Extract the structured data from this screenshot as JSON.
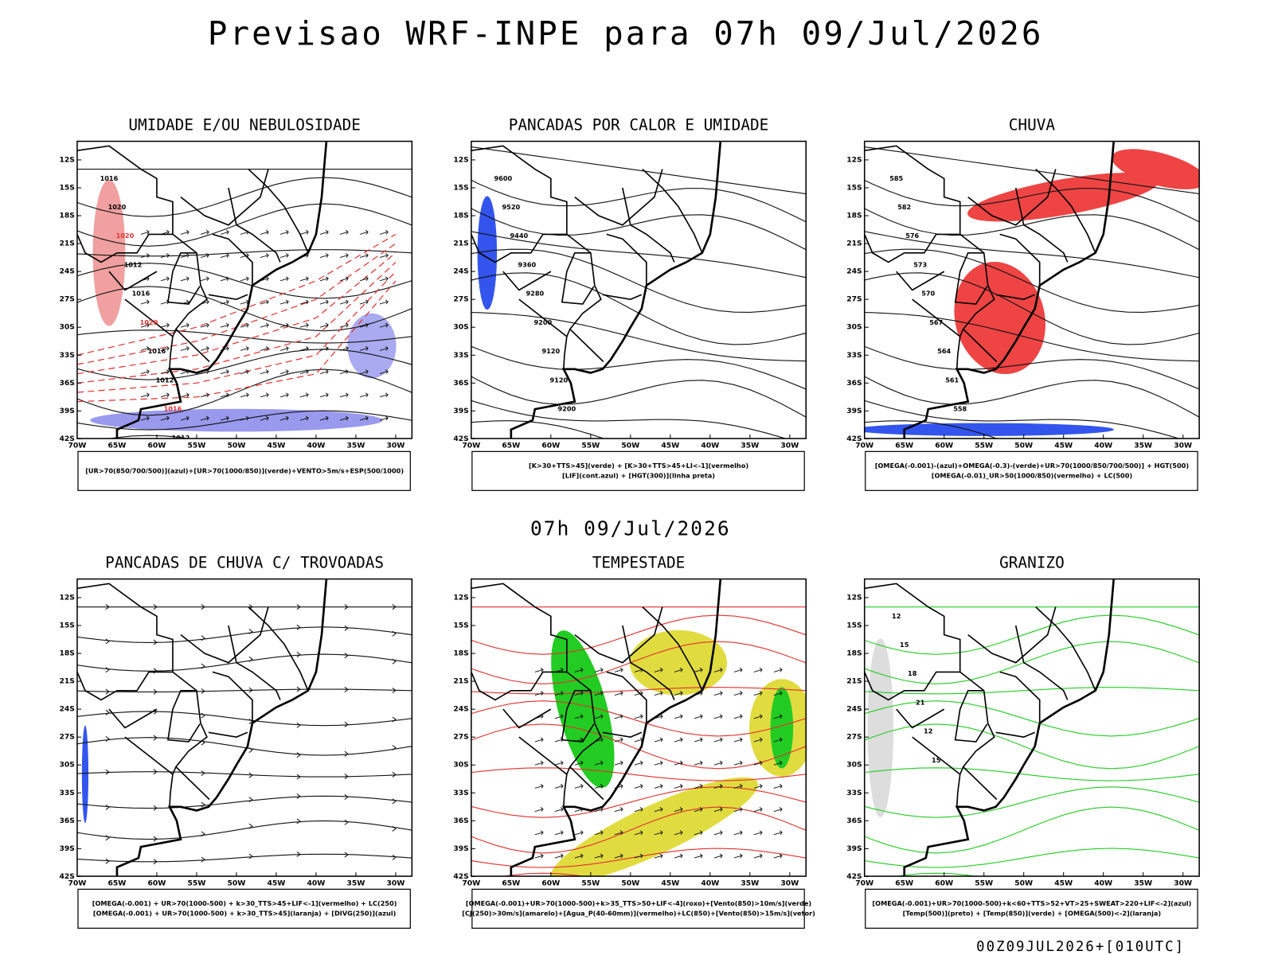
{
  "header": {
    "title": "Previsao WRF-INPE  para 07h 09/Jul/2026",
    "middle_label": "07h 09/Jul/2026",
    "footer": "00Z09JUL2026+[010UTC]"
  },
  "axes": {
    "lat_labels": [
      "12S",
      "15S",
      "18S",
      "21S",
      "24S",
      "27S",
      "30S",
      "33S",
      "36S",
      "39S",
      "42S"
    ],
    "lon_labels": [
      "70W",
      "65W",
      "60W",
      "55W",
      "50W",
      "45W",
      "40W",
      "35W",
      "30W"
    ]
  },
  "panels": [
    {
      "title": "UMIDADE E/OU NEBULOSIDADE",
      "legend": [
        "[UR>70(850/700/500)](azul)+[UR>70(1000/850)](verde)+VENTO>5m/s+ESP(500/1000)"
      ],
      "contour_labels": [
        "1016",
        "1020",
        "1020",
        "1012",
        "1016",
        "1020",
        "1016",
        "1012",
        "1016",
        "1012"
      ]
    },
    {
      "title": "PANCADAS POR CALOR E UMIDADE",
      "legend": [
        "[K>30+TTS>45](verde) + [K>30+TTS>45+LI<-1](vermelho)",
        "[LIF](cont.azul) + [HGT(300)](linha preta)"
      ],
      "contour_labels": [
        "9600",
        "9520",
        "9440",
        "9360",
        "9280",
        "9200",
        "9120",
        "9120",
        "9200"
      ]
    },
    {
      "title": "CHUVA",
      "legend": [
        "[OMEGA(-0.001)-(azul)+OMEGA(-0.3)-(verde)+UR>70(1000/850/700/500)] + HGT(500)",
        "[OMEGA(-0.01)_UR>50(1000/850)(vermelho) + LC(500)"
      ],
      "contour_labels": [
        "585",
        "582",
        "576",
        "573",
        "570",
        "567",
        "564",
        "561",
        "558"
      ]
    },
    {
      "title": "PANCADAS DE CHUVA C/ TROVOADAS",
      "legend": [
        "[OMEGA(-0.001) + UR>70(1000-500) + k>30_TTS>45+LIF<-1](vermelho) + LC(250)",
        "[OMEGA(-0.001) + UR>70(1000-500) + k>30_TTS>45](laranja) + [DIVG(250)](azul)"
      ],
      "contour_labels": []
    },
    {
      "title": "TEMPESTADE",
      "legend": [
        "[OMEGA(-0.001)+UR>70(1000-500)+k>35_TTS>50+LIF<-4](roxo)+[Vento(850)>10m/s](verde)",
        "[CJ(250)>30m/s](amarelo)+[Agua_P(40-60mm)](vermelho)+LC(850)+[Vento(850)>15m/s](vetor)"
      ],
      "contour_labels": []
    },
    {
      "title": "GRANIZO",
      "legend": [
        "[OMEGA(-0.001)+UR>70(1000-500)+k<60+TTS>52+VT>25+SWEAT>220+LIF<-2](azul)",
        "[Temp(500)](preto) + [Temp(850)](verde) + [OMEGA(500)<-2](laranja)"
      ],
      "contour_labels": [
        "12",
        "15",
        "18",
        "21",
        "12",
        "15"
      ]
    }
  ]
}
